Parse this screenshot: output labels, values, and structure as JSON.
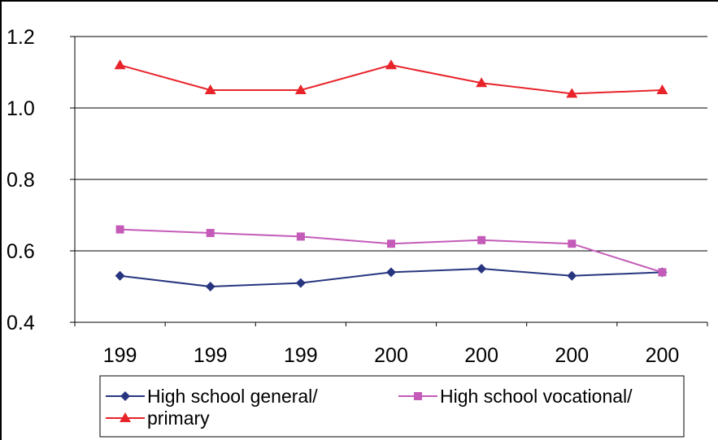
{
  "chart_data": {
    "type": "line",
    "title": "",
    "xlabel": "",
    "ylabel": "",
    "categories": [
      "199",
      "199",
      "199",
      "200",
      "200",
      "200",
      "200"
    ],
    "ylim": [
      0.4,
      1.2
    ],
    "yticks": [
      "0.4",
      "0.6",
      "0.8",
      "1.0",
      "1.2"
    ],
    "grid": true,
    "legend_position": "bottom",
    "series": [
      {
        "name": "High school general/",
        "values": [
          0.53,
          0.5,
          0.51,
          0.54,
          0.55,
          0.53,
          0.54
        ],
        "color": "#27357f",
        "marker": "diamond"
      },
      {
        "name": "High school vocational/",
        "values": [
          0.66,
          0.65,
          0.64,
          0.62,
          0.63,
          0.62,
          0.54
        ],
        "color": "#c45bb8",
        "marker": "square"
      },
      {
        "name": "primary",
        "values": [
          1.12,
          1.05,
          1.05,
          1.12,
          1.07,
          1.04,
          1.05
        ],
        "color": "#e8232a",
        "marker": "triangle"
      }
    ]
  }
}
